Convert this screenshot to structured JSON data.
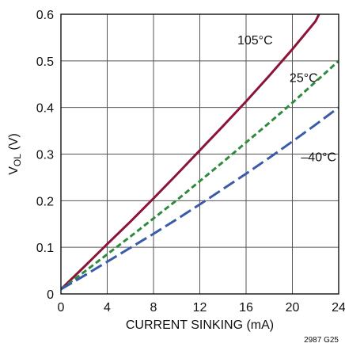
{
  "chart_data": {
    "type": "line",
    "title": "",
    "xlabel": "CURRENT SINKING (mA)",
    "ylabel": {
      "main": "V",
      "sub": "OL",
      "unit": " (V)"
    },
    "xlim": [
      0,
      24
    ],
    "ylim": [
      0,
      0.6
    ],
    "xticks": [
      "0",
      "4",
      "8",
      "12",
      "16",
      "20",
      "24"
    ],
    "yticks": [
      "0",
      "0.1",
      "0.2",
      "0.3",
      "0.4",
      "0.5",
      "0.6"
    ],
    "grid": true,
    "series": [
      {
        "name": "105°C",
        "color": "#8b1538",
        "dash": "solid",
        "x": [
          0,
          2,
          4,
          6,
          8,
          10,
          12,
          14,
          16,
          18,
          20,
          22,
          22.3
        ],
        "y": [
          0.01,
          0.058,
          0.107,
          0.155,
          0.205,
          0.256,
          0.308,
          0.36,
          0.413,
          0.468,
          0.525,
          0.585,
          0.6
        ]
      },
      {
        "name": "25°C",
        "color": "#2e8b3e",
        "dash": "short",
        "x": [
          0,
          2,
          4,
          6,
          8,
          10,
          12,
          14,
          16,
          18,
          20,
          22,
          24
        ],
        "y": [
          0.01,
          0.047,
          0.085,
          0.123,
          0.162,
          0.201,
          0.242,
          0.283,
          0.325,
          0.367,
          0.41,
          0.455,
          0.5
        ]
      },
      {
        "name": "–40°C",
        "color": "#3a5ba8",
        "dash": "long",
        "x": [
          0,
          2,
          4,
          6,
          8,
          10,
          12,
          14,
          16,
          18,
          20,
          22,
          24
        ],
        "y": [
          0.01,
          0.039,
          0.069,
          0.099,
          0.129,
          0.16,
          0.192,
          0.225,
          0.258,
          0.292,
          0.327,
          0.363,
          0.4
        ]
      }
    ],
    "annotations": {
      "code": "2987 G25"
    }
  }
}
